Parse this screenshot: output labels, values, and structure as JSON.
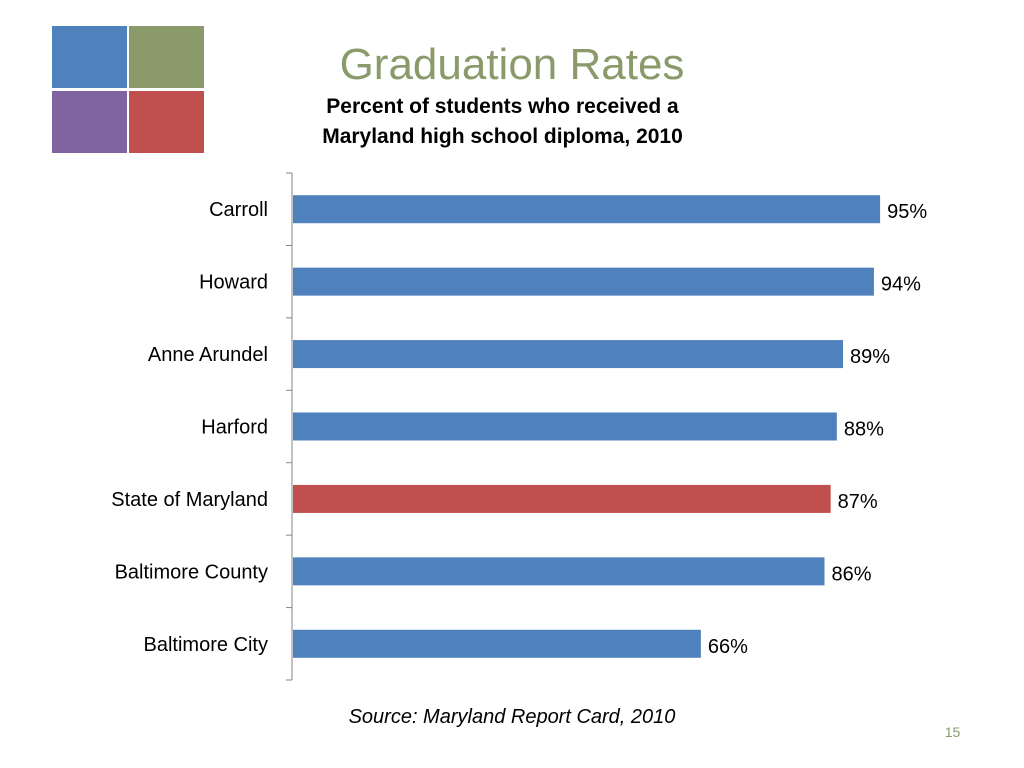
{
  "logo": {
    "colors": [
      "#4f81bd",
      "#8a9a6a",
      "#8064a2",
      "#c0504d"
    ]
  },
  "slide": {
    "title": "Graduation Rates",
    "subtitle_line1": "Percent of students who received a",
    "subtitle_line2": "Maryland high school diploma, 2010",
    "source": "Source: Maryland Report Card, 2010",
    "page_number": "15"
  },
  "chart_data": {
    "type": "bar",
    "orientation": "horizontal",
    "categories": [
      "Carroll",
      "Howard",
      "Anne Arundel",
      "Harford",
      "State of Maryland",
      "Baltimore County",
      "Baltimore City"
    ],
    "values": [
      95,
      94,
      89,
      88,
      87,
      86,
      66
    ],
    "data_labels": [
      "95%",
      "94%",
      "89%",
      "88%",
      "87%",
      "86%",
      "66%"
    ],
    "colors": [
      "#4f81bd",
      "#4f81bd",
      "#4f81bd",
      "#4f81bd",
      "#c0504d",
      "#4f81bd",
      "#4f81bd"
    ],
    "xlim": [
      0,
      100
    ],
    "grid": false,
    "legend": "none",
    "title": "",
    "xlabel": "",
    "ylabel": ""
  }
}
